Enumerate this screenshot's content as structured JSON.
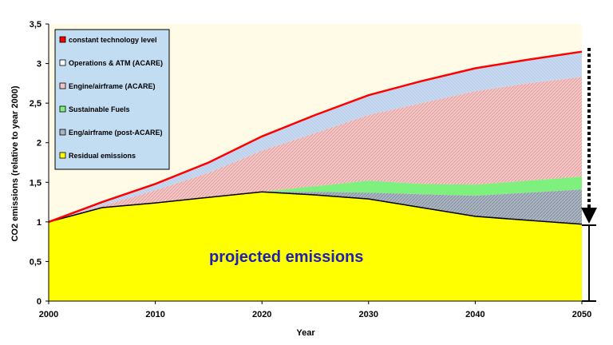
{
  "chart_data": {
    "type": "area",
    "title": "",
    "xlabel": "Year",
    "ylabel": "CO2 emissions (relative to year 2000)",
    "x": [
      2000,
      2005,
      2010,
      2015,
      2020,
      2025,
      2030,
      2035,
      2040,
      2045,
      2050
    ],
    "xlim": [
      2000,
      2050
    ],
    "ylim": [
      0,
      3.5
    ],
    "x_ticks": [
      "2000",
      "2010",
      "2020",
      "2030",
      "2040",
      "2050"
    ],
    "y_ticks": [
      "0",
      "0,5",
      "1",
      "1,5",
      "2",
      "2,5",
      "3",
      "3,5"
    ],
    "grid": false,
    "legend_position": "top-left",
    "series": [
      {
        "name": "constant technology level",
        "role": "line",
        "color": "#ff0000",
        "values": [
          1.0,
          1.25,
          1.48,
          1.75,
          2.08,
          2.35,
          2.6,
          2.78,
          2.94,
          3.05,
          3.15
        ]
      },
      {
        "name": "Operations & ATM (ACARE)",
        "role": "band",
        "color": "#c6d8f0",
        "values": [
          1.0,
          1.2,
          1.4,
          1.62,
          1.9,
          2.12,
          2.35,
          2.5,
          2.65,
          2.75,
          2.83
        ]
      },
      {
        "name": "Engine/airframe (ACARE)",
        "role": "band",
        "color": "#f2c4c4",
        "values": [
          1.0,
          1.18,
          1.24,
          1.31,
          1.38,
          1.45,
          1.52,
          1.48,
          1.47,
          1.52,
          1.57
        ]
      },
      {
        "name": "Sustainable Fuels",
        "role": "band",
        "color": "#7df07d",
        "values": [
          1.0,
          1.18,
          1.24,
          1.31,
          1.38,
          1.38,
          1.37,
          1.35,
          1.33,
          1.37,
          1.41
        ]
      },
      {
        "name": "Eng/airframe (post-ACARE)",
        "role": "band",
        "color": "#aab4c0",
        "values": [
          1.0,
          1.18,
          1.24,
          1.31,
          1.38,
          1.34,
          1.29,
          1.18,
          1.07,
          1.02,
          0.97
        ]
      },
      {
        "name": "Residual emissions",
        "role": "base",
        "color": "#ffff00",
        "values": [
          1.0,
          1.18,
          1.24,
          1.31,
          1.38,
          1.34,
          1.29,
          1.18,
          1.07,
          1.02,
          0.97
        ]
      }
    ],
    "annotations": [
      "projected emissions"
    ]
  }
}
